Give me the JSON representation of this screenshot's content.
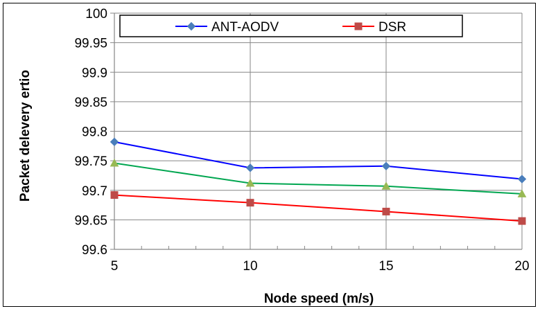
{
  "chart_data": {
    "type": "line",
    "title": "",
    "xlabel": "Node speed (m/s)",
    "ylabel": "Packet delevery ertio",
    "x": [
      5,
      10,
      15,
      20
    ],
    "xlim": [
      5,
      20
    ],
    "ylim": [
      99.6,
      100
    ],
    "x_ticks": [
      "5",
      "10",
      "15",
      "20"
    ],
    "y_ticks": [
      "99.6",
      "99.65",
      "99.7",
      "99.75",
      "99.8",
      "99.85",
      "99.9",
      "99.95",
      "100"
    ],
    "grid": true,
    "legend_position": "top",
    "series": [
      {
        "name": "ANT-AODV",
        "color": "#0000ff",
        "marker": "diamond",
        "marker_color": "#4a7ebb",
        "values": [
          99.782,
          99.738,
          99.741,
          99.719
        ]
      },
      {
        "name": "DSR",
        "color": "#ff0000",
        "marker": "square",
        "marker_color": "#be4b48",
        "values": [
          99.692,
          99.679,
          99.664,
          99.648
        ]
      },
      {
        "color": "#00a650",
        "marker": "triangle",
        "marker_color": "#98b954",
        "values": [
          99.746,
          99.712,
          99.707,
          99.694
        ]
      }
    ]
  }
}
